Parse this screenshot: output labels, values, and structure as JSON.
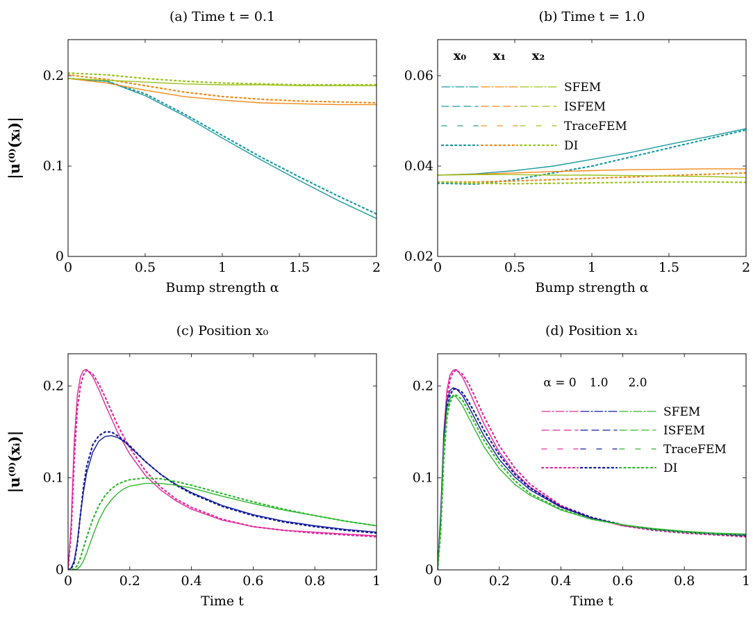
{
  "colors": {
    "teal": "#1a9aa0",
    "orange": "#f28a16",
    "yellowgreen": "#9cc21c",
    "magenta": "#e0289a",
    "navy": "#101a96",
    "green": "#2fb82f"
  },
  "legend_ab": {
    "headers": [
      "x₀",
      "x₁",
      "x₂"
    ],
    "rows": [
      "SFEM",
      "ISFEM",
      "TraceFEM",
      "DI"
    ]
  },
  "legend_d": {
    "headers": [
      "α = 0",
      "1.0",
      "2.0"
    ],
    "rows": [
      "SFEM",
      "ISFEM",
      "TraceFEM",
      "DI"
    ]
  },
  "chart_data": [
    {
      "id": "a",
      "type": "line",
      "title": "(a) Time t = 0.1",
      "xlabel": "Bump strength α",
      "ylabel": "|u⁽⁰⁾(xᵢ)|",
      "xlim": [
        0,
        2
      ],
      "ylim": [
        0,
        0.24
      ],
      "xticks": [
        0,
        0.5,
        1,
        1.5,
        2
      ],
      "xtick_labels": [
        "0",
        "0.5",
        "1",
        "1.5",
        "2"
      ],
      "yticks": [
        0,
        0.1,
        0.2
      ],
      "ytick_labels": [
        "0",
        "0.1",
        "0.2"
      ],
      "x": [
        0,
        0.25,
        0.5,
        0.75,
        1.0,
        1.25,
        1.5,
        1.75,
        2.0
      ],
      "series": [
        {
          "name": "x₀",
          "color": "teal",
          "style": "solid",
          "values": [
            0.197,
            0.194,
            0.178,
            0.156,
            0.131,
            0.107,
            0.084,
            0.062,
            0.042
          ]
        },
        {
          "name": "x₀",
          "color": "teal",
          "style": "dotted",
          "values": [
            0.197,
            0.194,
            0.18,
            0.158,
            0.134,
            0.11,
            0.088,
            0.067,
            0.047
          ]
        },
        {
          "name": "x₁",
          "color": "orange",
          "style": "solid",
          "values": [
            0.197,
            0.192,
            0.184,
            0.177,
            0.173,
            0.17,
            0.169,
            0.168,
            0.168
          ]
        },
        {
          "name": "x₁",
          "color": "orange",
          "style": "dotted",
          "values": [
            0.201,
            0.196,
            0.189,
            0.182,
            0.177,
            0.174,
            0.172,
            0.171,
            0.17
          ]
        },
        {
          "name": "x₂",
          "color": "yellowgreen",
          "style": "solid",
          "values": [
            0.197,
            0.195,
            0.193,
            0.191,
            0.19,
            0.19,
            0.189,
            0.189,
            0.189
          ]
        },
        {
          "name": "x₂",
          "color": "yellowgreen",
          "style": "dotted",
          "values": [
            0.203,
            0.201,
            0.197,
            0.194,
            0.192,
            0.191,
            0.19,
            0.19,
            0.19
          ]
        }
      ]
    },
    {
      "id": "b",
      "type": "line",
      "title": "(b) Time t = 1.0",
      "xlabel": "Bump strength α",
      "ylabel": "",
      "xlim": [
        0,
        2
      ],
      "ylim": [
        0.02,
        0.068
      ],
      "xticks": [
        0,
        0.5,
        1,
        1.5,
        2
      ],
      "xtick_labels": [
        "0",
        "0.5",
        "1",
        "1.5",
        "2"
      ],
      "yticks": [
        0.02,
        0.04,
        0.06
      ],
      "ytick_labels": [
        "0.02",
        "0.04",
        "0.06"
      ],
      "x": [
        0,
        0.25,
        0.5,
        0.75,
        1.0,
        1.25,
        1.5,
        1.75,
        2.0
      ],
      "series": [
        {
          "name": "x₀",
          "color": "teal",
          "style": "solid",
          "values": [
            0.038,
            0.0383,
            0.039,
            0.04,
            0.0415,
            0.043,
            0.0448,
            0.0465,
            0.0483
          ]
        },
        {
          "name": "x₀",
          "color": "teal",
          "style": "dotted",
          "values": [
            0.0362,
            0.036,
            0.037,
            0.0385,
            0.04,
            0.042,
            0.044,
            0.046,
            0.048
          ]
        },
        {
          "name": "x₁",
          "color": "orange",
          "style": "solid",
          "values": [
            0.038,
            0.0382,
            0.0385,
            0.0388,
            0.039,
            0.0392,
            0.0393,
            0.0394,
            0.0394
          ]
        },
        {
          "name": "x₁",
          "color": "orange",
          "style": "dotted",
          "values": [
            0.0365,
            0.0365,
            0.0367,
            0.037,
            0.0373,
            0.0376,
            0.0379,
            0.0382,
            0.0385
          ]
        },
        {
          "name": "x₂",
          "color": "yellowgreen",
          "style": "solid",
          "values": [
            0.038,
            0.0381,
            0.0381,
            0.038,
            0.038,
            0.0379,
            0.0378,
            0.0377,
            0.0375
          ]
        },
        {
          "name": "x₂",
          "color": "yellowgreen",
          "style": "dotted",
          "values": [
            0.0365,
            0.0362,
            0.0361,
            0.0362,
            0.0363,
            0.0364,
            0.0365,
            0.0365,
            0.0364
          ]
        }
      ]
    },
    {
      "id": "c",
      "type": "line",
      "title": "(c) Position x₀",
      "xlabel": "Time t",
      "ylabel": "|u⁽⁰⁾(xᵢ)|",
      "xlim": [
        0,
        1
      ],
      "ylim": [
        0,
        0.235
      ],
      "xticks": [
        0,
        0.2,
        0.4,
        0.6,
        0.8,
        1
      ],
      "xtick_labels": [
        "0",
        "0.2",
        "0.4",
        "0.6",
        "0.8",
        "1"
      ],
      "yticks": [
        0,
        0.1,
        0.2
      ],
      "ytick_labels": [
        "0",
        "0.1",
        "0.2"
      ],
      "x": [
        0,
        0.01,
        0.02,
        0.03,
        0.04,
        0.05,
        0.06,
        0.08,
        0.1,
        0.12,
        0.14,
        0.16,
        0.18,
        0.2,
        0.25,
        0.3,
        0.35,
        0.4,
        0.5,
        0.6,
        0.7,
        0.8,
        0.9,
        1.0
      ],
      "series": [
        {
          "name": "α = 0",
          "color": "magenta",
          "style": "solid",
          "values": [
            0,
            0.05,
            0.14,
            0.19,
            0.21,
            0.217,
            0.218,
            0.21,
            0.196,
            0.18,
            0.165,
            0.15,
            0.138,
            0.126,
            0.103,
            0.087,
            0.075,
            0.066,
            0.054,
            0.047,
            0.043,
            0.041,
            0.039,
            0.037
          ]
        },
        {
          "name": "α = 0",
          "color": "magenta",
          "style": "dotted",
          "values": [
            0,
            0.04,
            0.12,
            0.175,
            0.2,
            0.212,
            0.217,
            0.213,
            0.202,
            0.188,
            0.173,
            0.158,
            0.145,
            0.133,
            0.108,
            0.09,
            0.077,
            0.068,
            0.055,
            0.047,
            0.043,
            0.04,
            0.038,
            0.036
          ]
        },
        {
          "name": "1.0",
          "color": "navy",
          "style": "solid",
          "values": [
            0,
            0.002,
            0.01,
            0.03,
            0.06,
            0.085,
            0.105,
            0.128,
            0.14,
            0.145,
            0.146,
            0.144,
            0.14,
            0.134,
            0.118,
            0.104,
            0.093,
            0.084,
            0.07,
            0.06,
            0.053,
            0.048,
            0.044,
            0.041
          ]
        },
        {
          "name": "1.0",
          "color": "navy",
          "style": "dotted",
          "values": [
            0,
            0.001,
            0.008,
            0.028,
            0.06,
            0.09,
            0.112,
            0.136,
            0.146,
            0.15,
            0.15,
            0.146,
            0.141,
            0.135,
            0.118,
            0.104,
            0.092,
            0.083,
            0.069,
            0.059,
            0.052,
            0.047,
            0.043,
            0.04
          ]
        },
        {
          "name": "2.0",
          "color": "green",
          "style": "solid",
          "values": [
            0,
            0,
            0,
            0.001,
            0.004,
            0.01,
            0.018,
            0.037,
            0.054,
            0.067,
            0.076,
            0.083,
            0.088,
            0.091,
            0.094,
            0.094,
            0.092,
            0.089,
            0.08,
            0.072,
            0.065,
            0.059,
            0.053,
            0.048
          ]
        },
        {
          "name": "2.0",
          "color": "green",
          "style": "dotted",
          "values": [
            0,
            0,
            0.001,
            0.005,
            0.013,
            0.024,
            0.035,
            0.055,
            0.07,
            0.081,
            0.088,
            0.093,
            0.096,
            0.098,
            0.1,
            0.099,
            0.096,
            0.092,
            0.083,
            0.074,
            0.066,
            0.059,
            0.053,
            0.048
          ]
        }
      ]
    },
    {
      "id": "d",
      "type": "line",
      "title": "(d) Position x₁",
      "xlabel": "Time t",
      "ylabel": "",
      "xlim": [
        0,
        1
      ],
      "ylim": [
        0,
        0.235
      ],
      "xticks": [
        0,
        0.2,
        0.4,
        0.6,
        0.8,
        1
      ],
      "xtick_labels": [
        "0",
        "0.2",
        "0.4",
        "0.6",
        "0.8",
        "1"
      ],
      "yticks": [
        0,
        0.1,
        0.2
      ],
      "ytick_labels": [
        "0",
        "0.1",
        "0.2"
      ],
      "x": [
        0,
        0.01,
        0.02,
        0.03,
        0.04,
        0.05,
        0.06,
        0.08,
        0.1,
        0.12,
        0.15,
        0.2,
        0.25,
        0.3,
        0.4,
        0.5,
        0.6,
        0.7,
        0.8,
        0.9,
        1.0
      ],
      "series": [
        {
          "name": "α = 0",
          "color": "magenta",
          "style": "solid",
          "values": [
            0,
            0.06,
            0.15,
            0.195,
            0.212,
            0.217,
            0.218,
            0.21,
            0.196,
            0.181,
            0.159,
            0.128,
            0.106,
            0.09,
            0.069,
            0.056,
            0.048,
            0.044,
            0.041,
            0.039,
            0.037
          ]
        },
        {
          "name": "α = 0",
          "color": "magenta",
          "style": "dotted",
          "values": [
            0,
            0.05,
            0.135,
            0.185,
            0.207,
            0.215,
            0.217,
            0.213,
            0.203,
            0.189,
            0.167,
            0.135,
            0.111,
            0.093,
            0.07,
            0.057,
            0.048,
            0.043,
            0.04,
            0.038,
            0.036
          ]
        },
        {
          "name": "1.0",
          "color": "navy",
          "style": "solid",
          "values": [
            0,
            0.06,
            0.145,
            0.183,
            0.195,
            0.198,
            0.197,
            0.19,
            0.178,
            0.165,
            0.146,
            0.12,
            0.101,
            0.087,
            0.068,
            0.056,
            0.049,
            0.044,
            0.041,
            0.039,
            0.038
          ]
        },
        {
          "name": "1.0",
          "color": "navy",
          "style": "dotted",
          "values": [
            0,
            0.05,
            0.13,
            0.175,
            0.19,
            0.196,
            0.197,
            0.193,
            0.183,
            0.171,
            0.152,
            0.125,
            0.104,
            0.089,
            0.069,
            0.057,
            0.049,
            0.044,
            0.041,
            0.039,
            0.037
          ]
        },
        {
          "name": "2.0",
          "color": "green",
          "style": "solid",
          "values": [
            0,
            0.05,
            0.135,
            0.173,
            0.186,
            0.19,
            0.188,
            0.179,
            0.166,
            0.153,
            0.134,
            0.11,
            0.093,
            0.081,
            0.065,
            0.055,
            0.049,
            0.045,
            0.042,
            0.04,
            0.039
          ]
        },
        {
          "name": "2.0",
          "color": "green",
          "style": "dotted",
          "values": [
            0,
            0.04,
            0.12,
            0.165,
            0.182,
            0.189,
            0.19,
            0.185,
            0.173,
            0.16,
            0.141,
            0.116,
            0.097,
            0.083,
            0.066,
            0.055,
            0.049,
            0.044,
            0.041,
            0.039,
            0.038
          ]
        }
      ]
    }
  ]
}
